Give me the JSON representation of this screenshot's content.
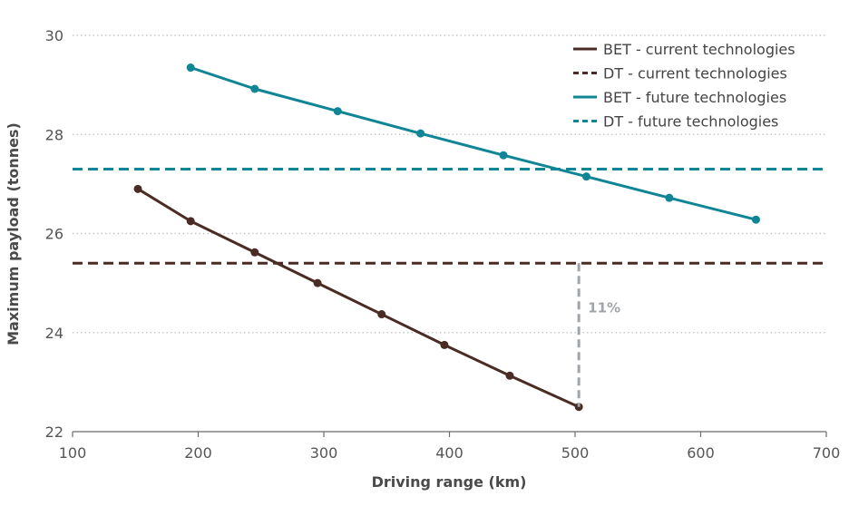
{
  "chart_data": {
    "type": "line",
    "xlabel": "Driving range (km)",
    "ylabel": "Maximum payload (tonnes)",
    "xlim": [
      100,
      700
    ],
    "ylim": [
      22,
      30
    ],
    "xticks": [
      "100",
      "200",
      "300",
      "400",
      "500",
      "600",
      "700"
    ],
    "yticks": [
      "22",
      "24",
      "26",
      "28",
      "30"
    ],
    "grid": "horizontal dotted",
    "legend_position": "top-right",
    "series": [
      {
        "name": "BET - current technologies",
        "color": "#4a2c24",
        "style": "solid-markers",
        "x": [
          152,
          194,
          245,
          295,
          346,
          396,
          448,
          503
        ],
        "y": [
          26.9,
          26.25,
          25.62,
          25.0,
          24.37,
          23.75,
          23.13,
          22.5
        ]
      },
      {
        "name": "DT - current technologies",
        "color": "#4a2c24",
        "style": "dashed",
        "x": [
          100,
          700
        ],
        "y": [
          25.4,
          25.4
        ]
      },
      {
        "name": "BET - future technologies",
        "color": "#0f8595",
        "style": "solid-markers",
        "x": [
          194,
          245,
          311,
          377,
          443,
          509,
          575,
          644
        ],
        "y": [
          29.35,
          28.92,
          28.47,
          28.02,
          27.58,
          27.15,
          26.72,
          26.28
        ]
      },
      {
        "name": "DT - future technologies",
        "color": "#0f8595",
        "style": "dashed",
        "x": [
          100,
          700
        ],
        "y": [
          27.3,
          27.3
        ]
      }
    ],
    "annotations": [
      {
        "text": "11%",
        "x": 503,
        "y_from": 25.4,
        "y_to": 22.5,
        "color": "#a0a4a8"
      }
    ]
  }
}
